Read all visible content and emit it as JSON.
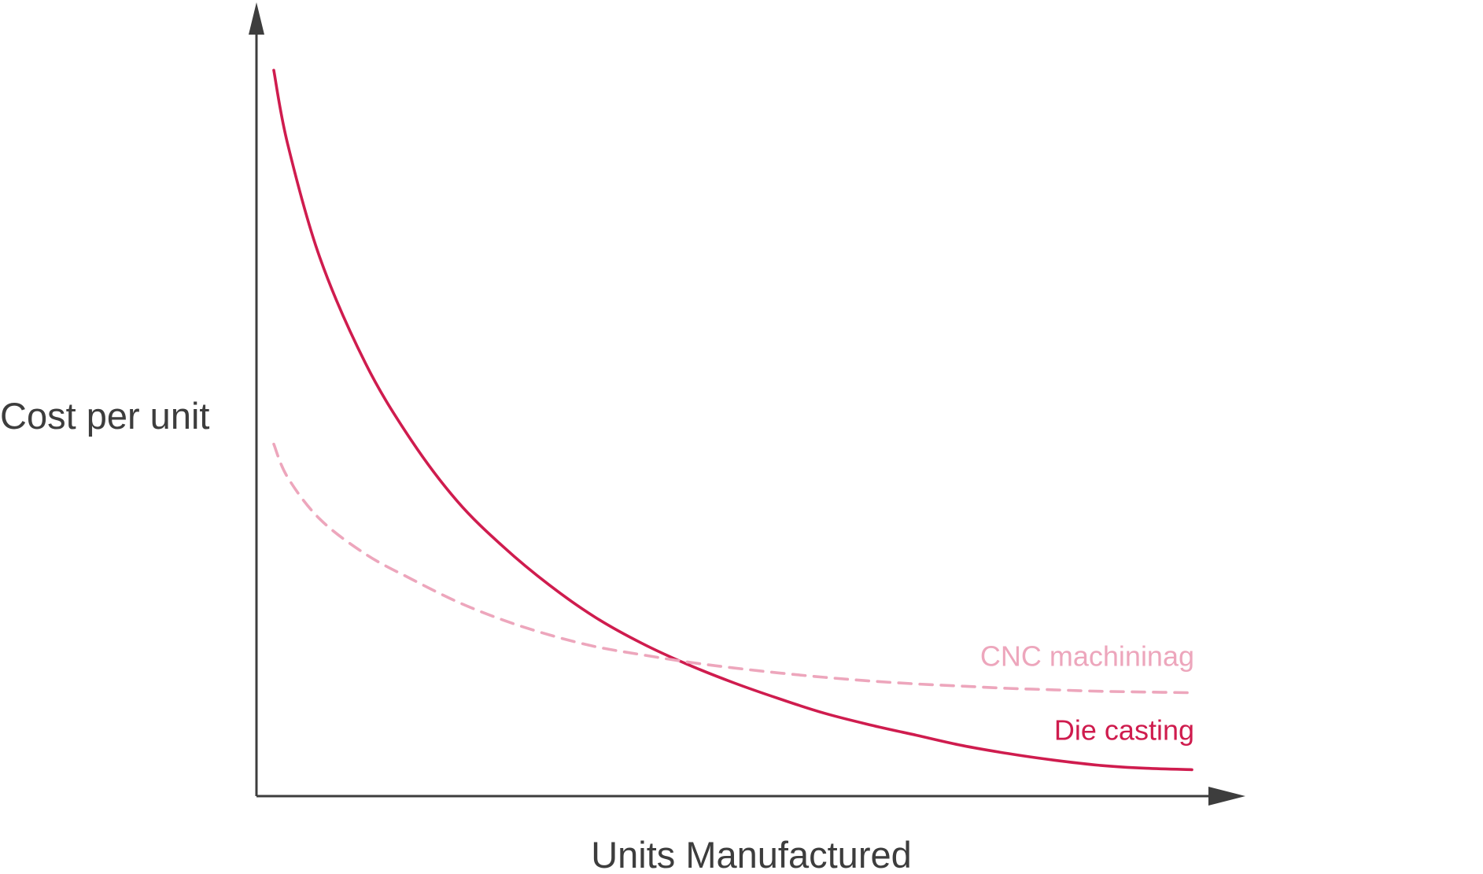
{
  "chart_data": {
    "type": "line",
    "title": "",
    "xlabel": "Units Manufactured",
    "ylabel": "Cost per unit",
    "grid": false,
    "legend": "inline-right",
    "axes_ticks": false,
    "xlim": [
      0,
      10
    ],
    "ylim": [
      0,
      10
    ],
    "series": [
      {
        "name": "Die casting",
        "color": "#cf1c4e",
        "style": "solid",
        "x": [
          0.0,
          0.15,
          0.5,
          1.0,
          1.5,
          2.0,
          2.5,
          3.0,
          3.5,
          4.0,
          4.5,
          5.0,
          5.5,
          6.0,
          6.5,
          7.0,
          7.5,
          8.0,
          8.5,
          9.0,
          9.5,
          10.0
        ],
        "y": [
          9.9,
          8.9,
          7.35,
          5.9,
          4.85,
          4.02,
          3.4,
          2.88,
          2.44,
          2.09,
          1.8,
          1.55,
          1.33,
          1.13,
          0.97,
          0.83,
          0.69,
          0.58,
          0.49,
          0.42,
          0.38,
          0.36
        ]
      },
      {
        "name": "CNC machininag",
        "color": "#eda6bc",
        "style": "dashed",
        "x": [
          0.0,
          0.15,
          0.5,
          1.0,
          1.5,
          2.0,
          2.5,
          3.0,
          3.5,
          4.0,
          4.5,
          5.0,
          5.5,
          6.0,
          6.5,
          7.0,
          7.5,
          8.0,
          8.5,
          9.0,
          9.5,
          10.0
        ],
        "y": [
          4.8,
          4.35,
          3.78,
          3.3,
          2.96,
          2.65,
          2.4,
          2.2,
          2.04,
          1.93,
          1.83,
          1.75,
          1.68,
          1.62,
          1.57,
          1.53,
          1.5,
          1.47,
          1.45,
          1.43,
          1.42,
          1.41
        ]
      }
    ]
  }
}
